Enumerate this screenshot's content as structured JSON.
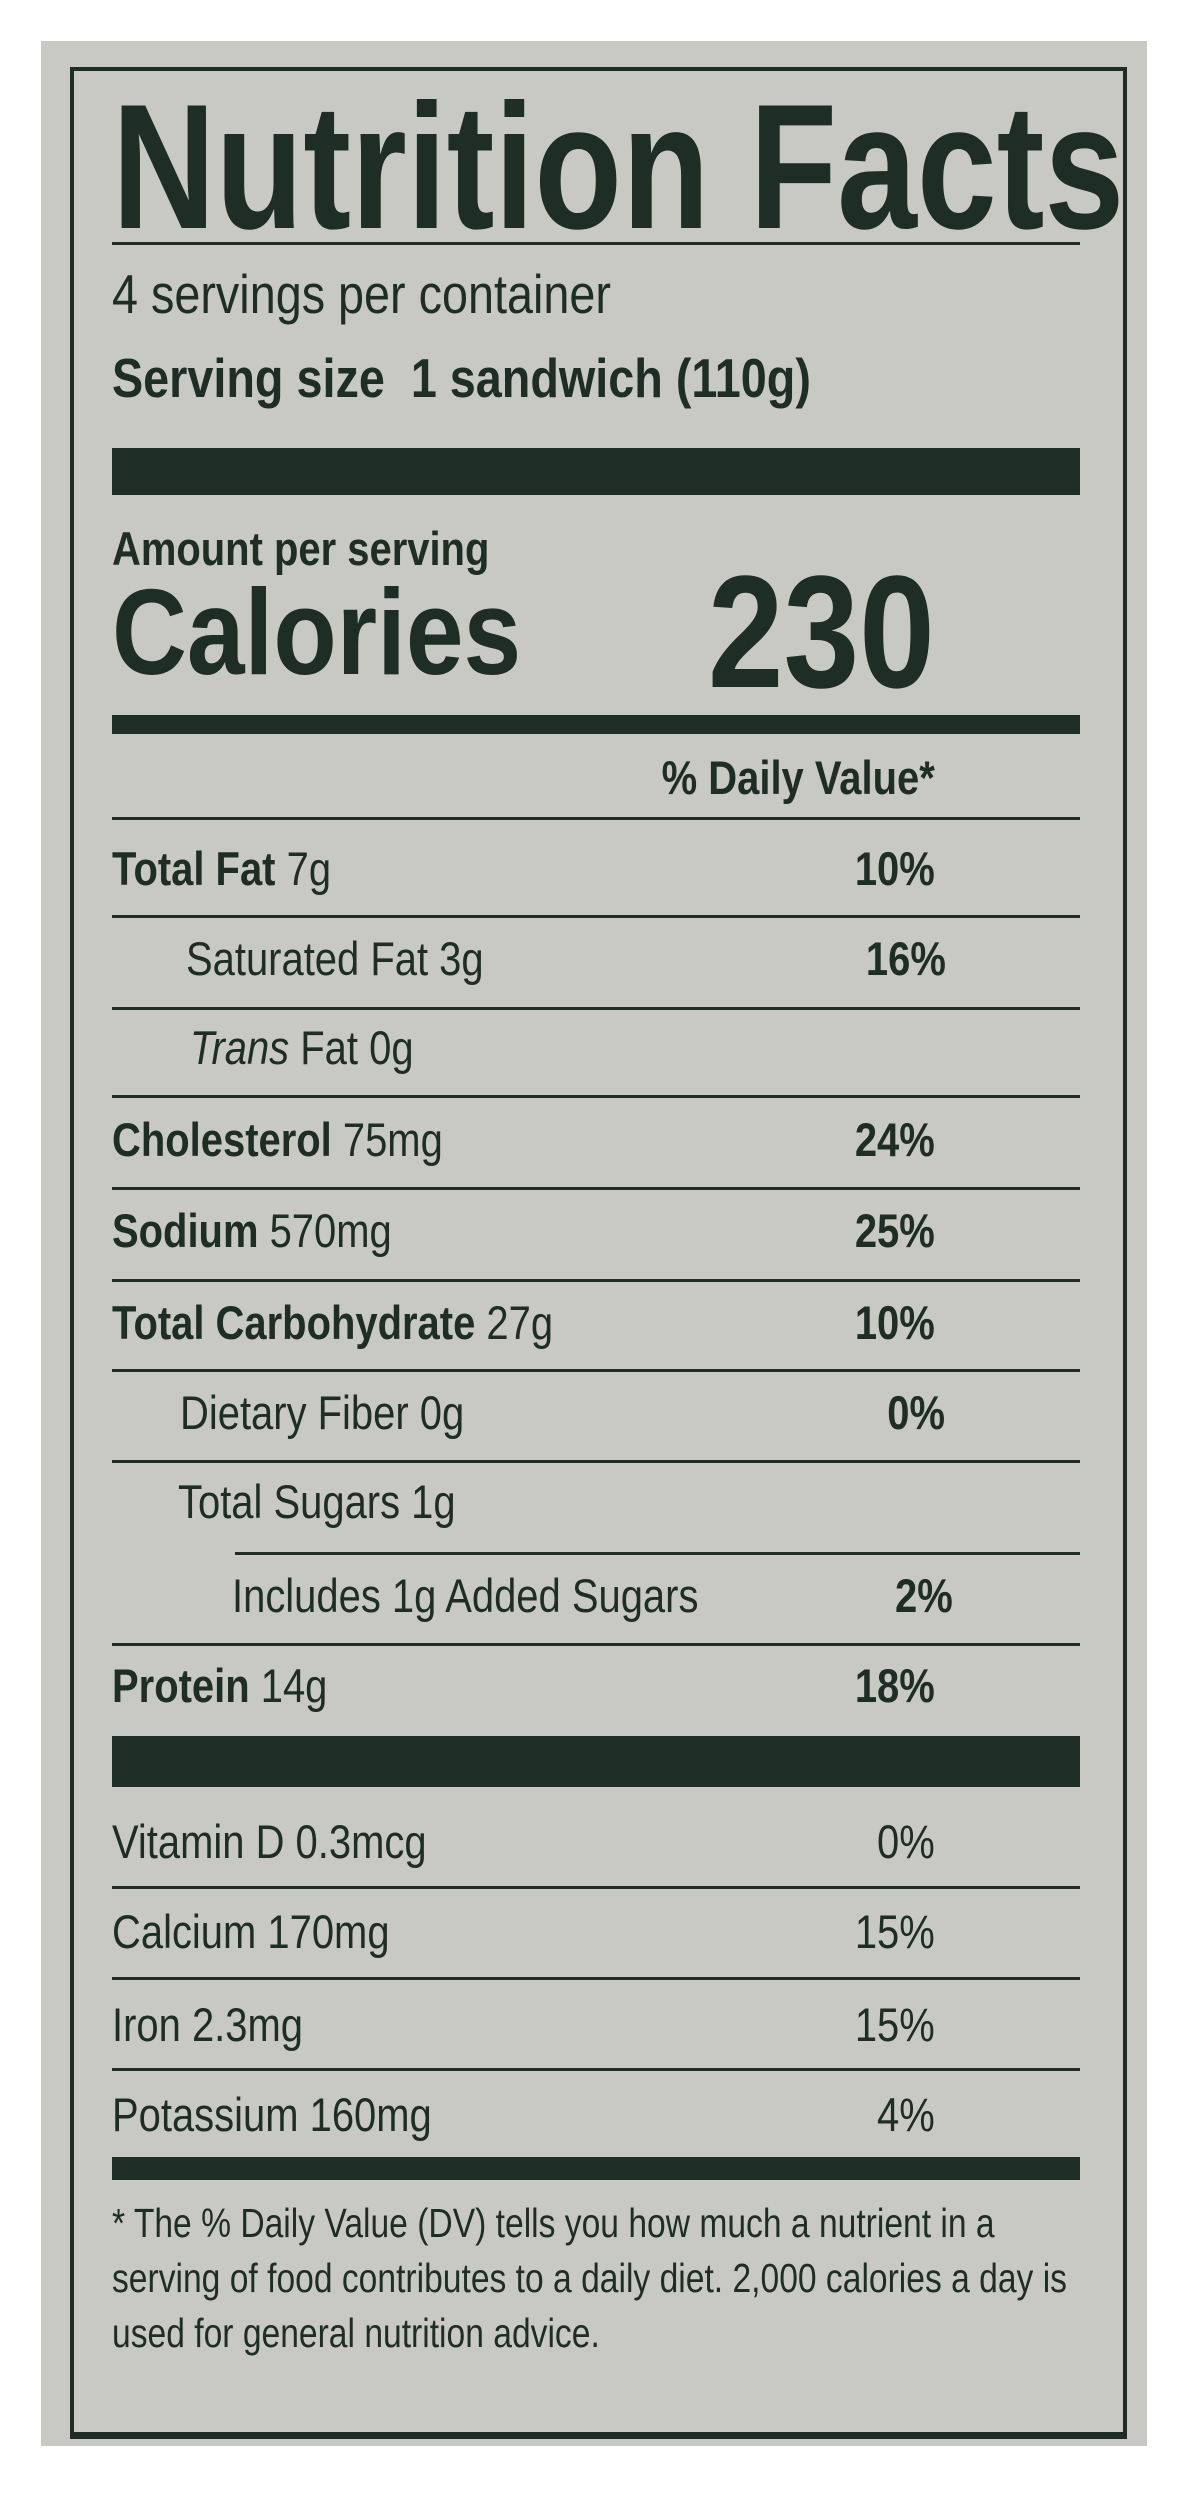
{
  "title": "Nutrition Facts",
  "servings_per_container": "4 servings per container",
  "serving_size_label": "Serving size",
  "serving_size_value": "1 sandwich (110g)",
  "amount_per_serving": "Amount per serving",
  "calories_label": "Calories",
  "calories_value": "230",
  "dv_header": "% Daily Value*",
  "nutrients": [
    {
      "name": "Total Fat",
      "amount": "7g",
      "dv": "10%"
    },
    {
      "name": "Saturated Fat",
      "amount": "3g",
      "dv": "16%"
    },
    {
      "name": "Trans",
      "name_rest": "Fat",
      "amount": "0g",
      "dv": ""
    },
    {
      "name": "Cholesterol",
      "amount": "75mg",
      "dv": "24%"
    },
    {
      "name": "Sodium",
      "amount": "570mg",
      "dv": "25%"
    },
    {
      "name": "Total Carbohydrate",
      "amount": "27g",
      "dv": "10%"
    },
    {
      "name": "Dietary Fiber",
      "amount": "0g",
      "dv": "0%"
    },
    {
      "name": "Total Sugars",
      "amount": "1g",
      "dv": ""
    },
    {
      "name": "Includes 1g Added Sugars",
      "amount": "",
      "dv": "2%"
    },
    {
      "name": "Protein",
      "amount": "14g",
      "dv": "18%"
    }
  ],
  "vitamins": [
    {
      "text": "Vitamin D 0.3mcg",
      "dv": "0%"
    },
    {
      "text": "Calcium 170mg",
      "dv": "15%"
    },
    {
      "text": "Iron 2.3mg",
      "dv": "15%"
    },
    {
      "text": "Potassium 160mg",
      "dv": "4%"
    }
  ],
  "footnote": "* The % Daily Value (DV) tells you how much a nutrient in a serving of food contributes to a daily diet. 2,000 calories a day is used for general nutrition advice.",
  "colors": {
    "ink": "#1f2d27",
    "background": "#c8c9c4"
  }
}
